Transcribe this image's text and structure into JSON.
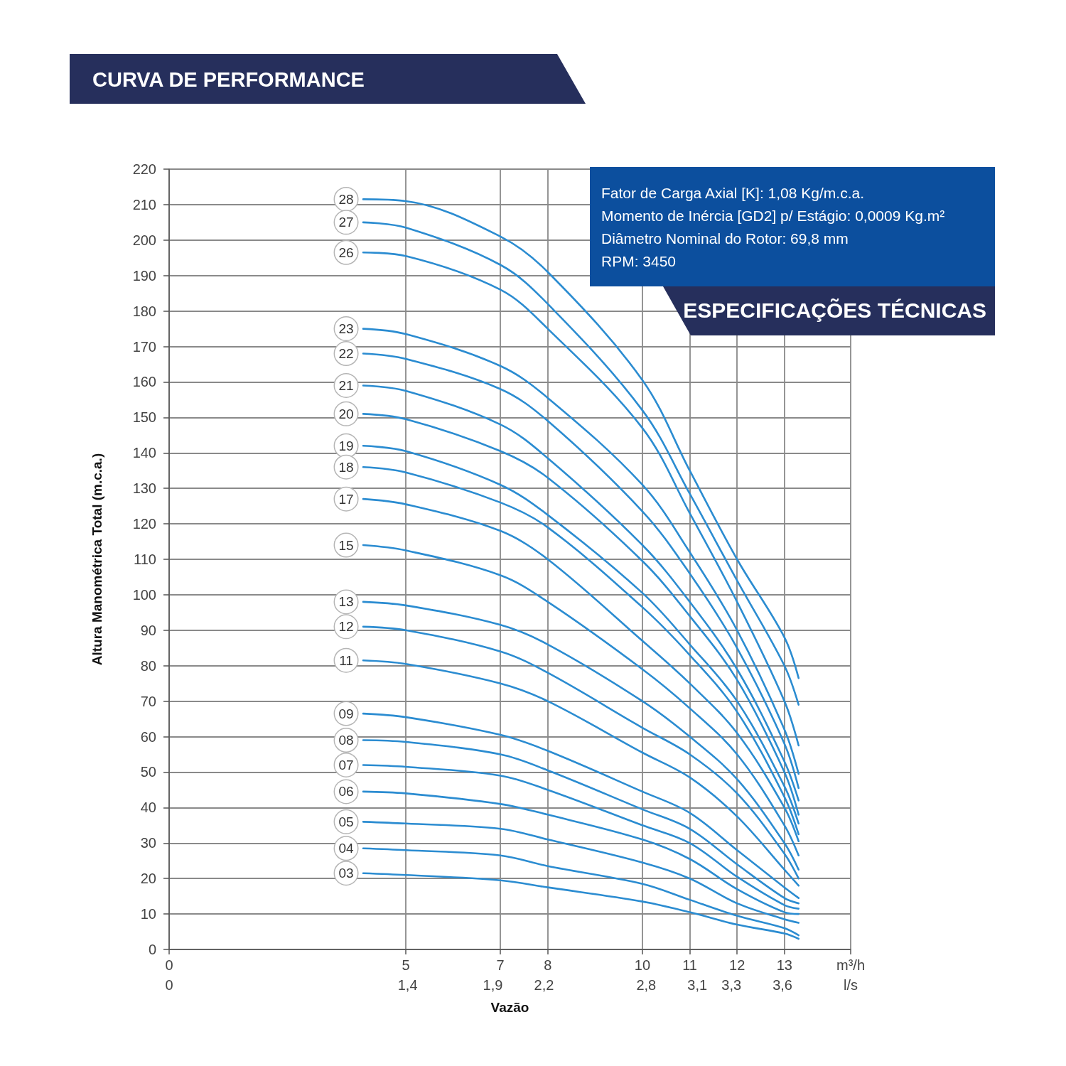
{
  "chart_data": {
    "type": "line",
    "title": "CURVA DE PERFORMANCE",
    "subtitle": "ESPECIFICAÇÕES TÉCNICAS",
    "annotations": [
      "Fator de Carga Axial [K]: 1,08 Kg/m.c.a.",
      "Momento de Inércia [GD2] p/ Estágio: 0,0009 Kg.m²",
      "Diâmetro Nominal do Rotor: 69,8 mm",
      "RPM: 3450"
    ],
    "xlabel": "Vazão",
    "ylabel": "Altura Manométrica Total (m.c.a.)",
    "xlim": [
      0,
      14.4
    ],
    "xticks": [
      0,
      5,
      7,
      8,
      10,
      11,
      12,
      13,
      {
        "value": 14.4,
        "label": "m³/h"
      }
    ],
    "x2lim": [
      0,
      4
    ],
    "x2ticks": [
      0,
      {
        "value": 1.4,
        "label": "1,4"
      },
      {
        "value": 1.9,
        "label": "1,9"
      },
      {
        "value": 2.2,
        "label": "2,2"
      },
      {
        "value": 2.8,
        "label": "2,8"
      },
      {
        "value": 3.1,
        "label": "3,1"
      },
      {
        "value": 3.3,
        "label": "3,3"
      },
      {
        "value": 3.6,
        "label": "3,6"
      },
      {
        "value": 4,
        "label": "l/s"
      }
    ],
    "ylim": [
      0,
      220
    ],
    "yticks": [
      0,
      10,
      20,
      30,
      40,
      50,
      60,
      70,
      80,
      90,
      100,
      110,
      120,
      130,
      140,
      150,
      160,
      170,
      180,
      190,
      200,
      210,
      220
    ],
    "grid": true,
    "marker": "none",
    "line_style": "solid",
    "x": [
      4.1,
      5,
      7,
      8,
      10,
      11,
      12,
      13,
      13.3
    ],
    "series": [
      {
        "name": "28",
        "color": "#2b8cd1",
        "values": [
          211.5,
          211,
          201,
          191,
          160.5,
          135,
          110,
          88,
          76.5
        ]
      },
      {
        "name": "27",
        "color": "#2b8cd1",
        "values": [
          205,
          203.5,
          193,
          182,
          152,
          128.5,
          104,
          80,
          69
        ]
      },
      {
        "name": "26",
        "color": "#2b8cd1",
        "values": [
          196.5,
          195.5,
          186,
          175,
          147,
          123,
          98,
          70,
          57.5
        ]
      },
      {
        "name": "23",
        "color": "#2b8cd1",
        "values": [
          175,
          173.5,
          164.5,
          155.5,
          131,
          112,
          90,
          62,
          49.5
        ]
      },
      {
        "name": "22",
        "color": "#2b8cd1",
        "values": [
          168,
          166.5,
          158,
          149,
          123.5,
          106,
          85,
          58,
          45.5
        ]
      },
      {
        "name": "21",
        "color": "#2b8cd1",
        "values": [
          159,
          157.5,
          148,
          138.5,
          114,
          98,
          79,
          53,
          42
        ]
      },
      {
        "name": "20",
        "color": "#2b8cd1",
        "values": [
          151,
          149.5,
          140.5,
          133,
          109.5,
          94,
          76,
          50,
          38
        ]
      },
      {
        "name": "19",
        "color": "#2b8cd1",
        "values": [
          142,
          140.5,
          131,
          122.5,
          100.5,
          86,
          70,
          46,
          35.5
        ]
      },
      {
        "name": "18",
        "color": "#2b8cd1",
        "values": [
          136,
          134.5,
          126,
          119,
          96.5,
          83,
          67,
          43,
          32.5
        ]
      },
      {
        "name": "17",
        "color": "#2b8cd1",
        "values": [
          127,
          125.5,
          118,
          110,
          87,
          75,
          61,
          40,
          30.5
        ]
      },
      {
        "name": "15",
        "color": "#2b8cd1",
        "values": [
          114,
          112.5,
          105.5,
          98,
          79,
          68,
          55,
          35,
          26.5
        ]
      },
      {
        "name": "13",
        "color": "#2b8cd1",
        "values": [
          98,
          97,
          91.5,
          86,
          70,
          60,
          48,
          30,
          22.5
        ]
      },
      {
        "name": "12",
        "color": "#2b8cd1",
        "values": [
          91,
          90,
          84,
          78,
          62.5,
          55,
          44,
          27,
          20
        ]
      },
      {
        "name": "11",
        "color": "#2b8cd1",
        "values": [
          81.5,
          80.5,
          75,
          70,
          55.5,
          48.5,
          37.5,
          22.5,
          18
        ]
      },
      {
        "name": "09",
        "color": "#2b8cd1",
        "values": [
          66.5,
          65.5,
          60.5,
          56,
          44.5,
          38.5,
          28,
          17.5,
          14.5
        ]
      },
      {
        "name": "08",
        "color": "#2b8cd1",
        "values": [
          59,
          58.5,
          55,
          50.5,
          39.5,
          34,
          24,
          14.5,
          13
        ]
      },
      {
        "name": "07",
        "color": "#2b8cd1",
        "values": [
          52,
          51.5,
          49,
          45,
          35,
          30,
          20.5,
          12.5,
          11.5
        ]
      },
      {
        "name": "06",
        "color": "#2b8cd1",
        "values": [
          44.5,
          44,
          41,
          38,
          31,
          25.5,
          17,
          10.5,
          10
        ]
      },
      {
        "name": "05",
        "color": "#2b8cd1",
        "values": [
          36,
          35.5,
          34,
          31,
          24.5,
          20,
          13,
          8.5,
          7.5
        ]
      },
      {
        "name": "04",
        "color": "#2b8cd1",
        "values": [
          28.5,
          28,
          26.5,
          23.5,
          18.5,
          14,
          9.5,
          6,
          4
        ]
      },
      {
        "name": "03",
        "color": "#2b8cd1",
        "values": [
          21.5,
          21,
          19.5,
          17.5,
          13.5,
          10.5,
          7,
          4.5,
          3
        ]
      }
    ]
  }
}
